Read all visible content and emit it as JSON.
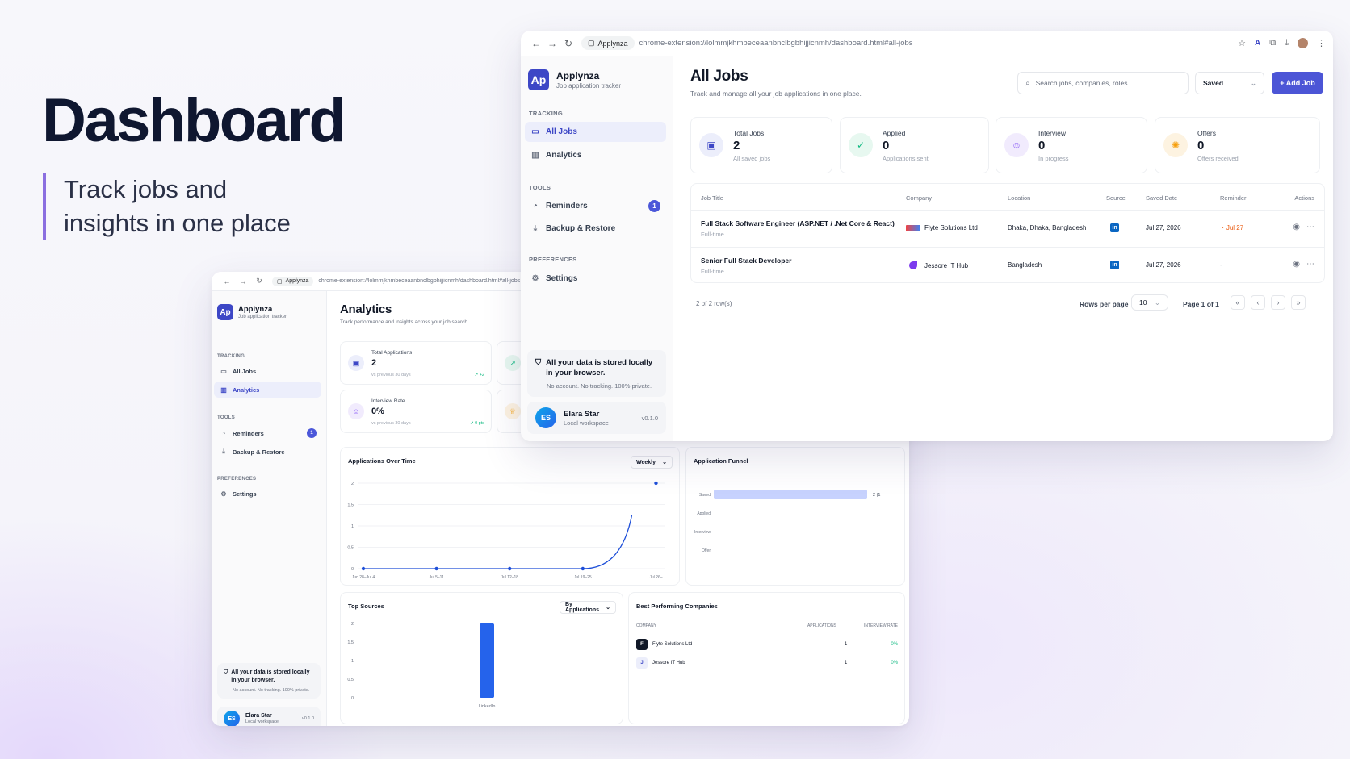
{
  "hero": {
    "title": "Dashboard",
    "subtitle_line1": "Track jobs and",
    "subtitle_line2": "insights in one place"
  },
  "front": {
    "browser": {
      "tab": "Applynza",
      "url": "chrome-extension://lolmmjkhmbeceaanbnclbgbhijjicnmh/dashboard.html#all-jobs"
    },
    "brand": {
      "name": "Applynza",
      "tagline": "Job application tracker",
      "logo": "Ap"
    },
    "nav": {
      "tracking": "TRACKING",
      "all_jobs": "All Jobs",
      "analytics": "Analytics",
      "tools": "TOOLS",
      "reminders": "Reminders",
      "reminders_count": "1",
      "backup": "Backup & Restore",
      "preferences": "PREFERENCES",
      "settings": "Settings"
    },
    "privacy": {
      "title": "All your data is stored locally in your browser.",
      "sub": "No account. No tracking. 100% private."
    },
    "user": {
      "initials": "ES",
      "name": "Elara Star",
      "workspace": "Local workspace",
      "version": "v0.1.0"
    },
    "page": {
      "title": "All Jobs",
      "subtitle": "Track and manage all your job applications in one place."
    },
    "search_placeholder": "Search jobs, companies, roles...",
    "filter": "Saved",
    "add_button": "+ Add Job",
    "stats": [
      {
        "label": "Total Jobs",
        "value": "2",
        "sub": "All saved jobs",
        "color": "#3d47c6",
        "bg": "#eceefb",
        "icon": "briefcase-icon"
      },
      {
        "label": "Applied",
        "value": "0",
        "sub": "Applications sent",
        "color": "#10b981",
        "bg": "#e7f8f0",
        "icon": "check-circle-icon"
      },
      {
        "label": "Interview",
        "value": "0",
        "sub": "In progress",
        "color": "#8b5cf6",
        "bg": "#f1ebfd",
        "icon": "users-icon"
      },
      {
        "label": "Offers",
        "value": "0",
        "sub": "Offers received",
        "color": "#f59e0b",
        "bg": "#fdf3e1",
        "icon": "sparkle-icon"
      }
    ],
    "table": {
      "columns": {
        "title": "Job Title",
        "company": "Company",
        "location": "Location",
        "source": "Source",
        "saved": "Saved Date",
        "reminder": "Reminder",
        "actions": "Actions"
      },
      "rows": [
        {
          "title": "Full Stack Software Engineer (ASP.NET / .Net Core & React)",
          "type": "Full-time",
          "company": "Flyte Solutions Ltd",
          "location": "Dhaka, Dhaka, Bangladesh",
          "source": "in",
          "saved": "Jul 27, 2026",
          "reminder": "Jul 27"
        },
        {
          "title": "Senior Full Stack Developer",
          "type": "Full-time",
          "company": "Jessore IT Hub",
          "location": "Bangladesh",
          "source": "in",
          "saved": "Jul 27, 2026",
          "reminder": "-"
        }
      ],
      "count": "2 of 2 row(s)",
      "rows_per_page_label": "Rows per page",
      "rows_per_page": "10",
      "page": "Page 1 of 1"
    }
  },
  "back": {
    "browser": {
      "tab": "Applynza",
      "url": "chrome-extension://lolmmjkhmbeceaanbnclbgbhijjicnmh/dashboard.html#all-jobs"
    },
    "page": {
      "title": "Analytics",
      "subtitle": "Track performance and insights across your job search."
    },
    "kpis": [
      {
        "label": "Total Applications",
        "value": "2",
        "sub": "vs previous 30 days",
        "delta": "↗ +2"
      },
      {
        "label": "Interview Rate",
        "value": "0%",
        "sub": "vs previous 30 days",
        "delta": "↗ 0 pts"
      }
    ],
    "apps_over_time": {
      "title": "Applications Over Time",
      "range": "Weekly"
    },
    "funnel": {
      "title": "Application Funnel"
    },
    "top_sources": {
      "title": "Top Sources",
      "metric": "By Applications"
    },
    "best_companies": {
      "title": "Best Performing Companies",
      "col_company": "COMPANY",
      "col_apps": "APPLICATIONS",
      "col_rate": "INTERVIEW RATE",
      "rows": [
        {
          "initial": "F",
          "name": "Flyte Solutions Ltd",
          "apps": "1",
          "rate": "0%"
        },
        {
          "initial": "J",
          "name": "Jessore IT Hub",
          "apps": "1",
          "rate": "0%"
        }
      ]
    }
  },
  "chart_data": [
    {
      "type": "line",
      "title": "Applications Over Time",
      "categories": [
        "Jun 28–Jul 4",
        "Jul 5–11",
        "Jul 12–18",
        "Jul 19–25",
        "Jul 26–"
      ],
      "values": [
        0,
        0,
        0,
        0,
        2
      ],
      "yticks": [
        "0",
        "0.5",
        "1",
        "1.5",
        "2"
      ],
      "ylim": [
        0,
        2
      ],
      "color": "#1d4ed8"
    },
    {
      "type": "bar",
      "title": "Application Funnel",
      "orientation": "horizontal",
      "categories": [
        "Saved",
        "Applied",
        "Interview",
        "Offer"
      ],
      "values": [
        2,
        0,
        0,
        0
      ],
      "value_labels": [
        "2 (1",
        "",
        "",
        ""
      ],
      "color": "#c7d2fe"
    },
    {
      "type": "bar",
      "title": "Top Sources",
      "categories": [
        "LinkedIn"
      ],
      "values": [
        2
      ],
      "yticks": [
        "0",
        "0.5",
        "1",
        "1.5",
        "2"
      ],
      "ylim": [
        0,
        2
      ],
      "color": "#2563eb"
    }
  ]
}
